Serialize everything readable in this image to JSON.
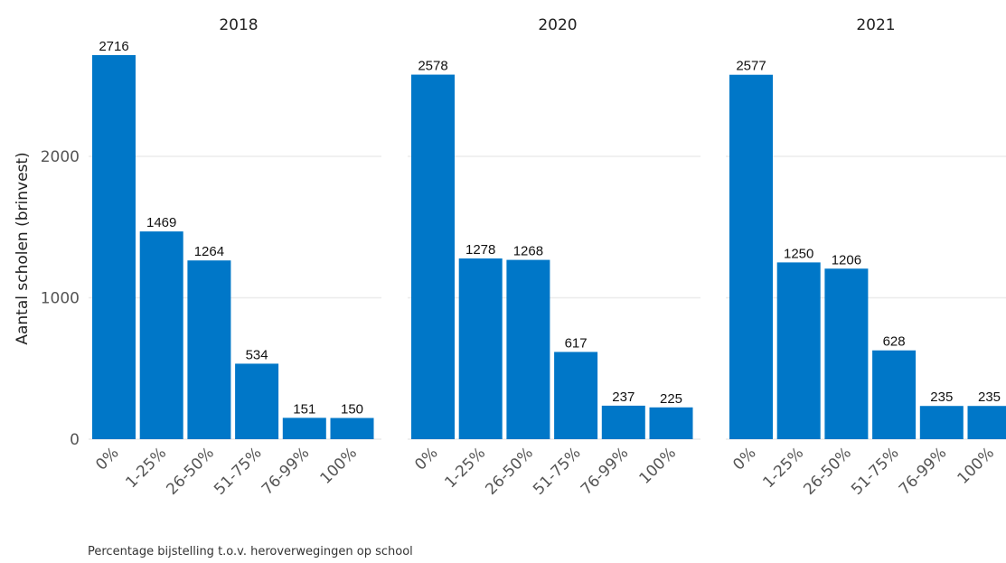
{
  "chart_data": {
    "type": "bar",
    "ylabel": "Aantal scholen (brinvest)",
    "caption": "Percentage bijstelling t.o.v. heroverwegingen op school",
    "categories": [
      "0%",
      "1-25%",
      "26-50%",
      "51-75%",
      "76-99%",
      "100%"
    ],
    "ylim": [
      0,
      2850
    ],
    "yticks": [
      0,
      1000,
      2000
    ],
    "grid": true,
    "bar_color": "#0077c8",
    "panels": [
      {
        "title": "2018",
        "values": [
          2716,
          1469,
          1264,
          534,
          151,
          150
        ]
      },
      {
        "title": "2020",
        "values": [
          2578,
          1278,
          1268,
          617,
          237,
          225
        ]
      },
      {
        "title": "2021",
        "values": [
          2577,
          1250,
          1206,
          628,
          235,
          235
        ]
      }
    ]
  }
}
